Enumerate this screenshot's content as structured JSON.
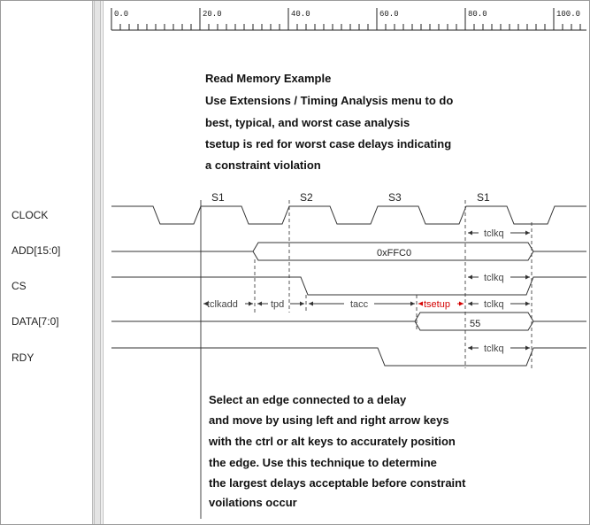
{
  "ruler": {
    "ticks": [
      "0.0",
      "20.0",
      "40.0",
      "60.0",
      "80.0",
      "100.0"
    ]
  },
  "signals": [
    {
      "name": "CLOCK"
    },
    {
      "name": "ADD[15:0]"
    },
    {
      "name": "CS"
    },
    {
      "name": "DATA[7:0]"
    },
    {
      "name": "RDY"
    }
  ],
  "states": [
    "S1",
    "S2",
    "S3",
    "S1"
  ],
  "bus_values": {
    "address": "0xFFC0",
    "data": "55"
  },
  "delays": {
    "tclkadd": "tclkadd",
    "tpd": "tpd",
    "tacc": "tacc",
    "tsetup": "tsetup",
    "tclkq_add": "tclkq",
    "tclkq_cs": "tclkq",
    "tclkq_data": "tclkq",
    "tclkq_rdy": "tclkq"
  },
  "notes": {
    "top": [
      "Read Memory Example",
      "Use Extensions / Timing Analysis menu to do",
      "best, typical, and worst case analysis",
      "tsetup is red for worst case delays indicating",
      "a constraint violation"
    ],
    "bottom": [
      "Select an edge connected to a delay",
      "and move by using left and right arrow keys",
      "with the ctrl or alt keys to accurately position",
      "the edge. Use this technique to determine",
      "the largest delays acceptable before constraint",
      "voilations occur"
    ]
  },
  "colors": {
    "signal": "#333333",
    "violation": "#d40000",
    "grid": "#555555"
  }
}
